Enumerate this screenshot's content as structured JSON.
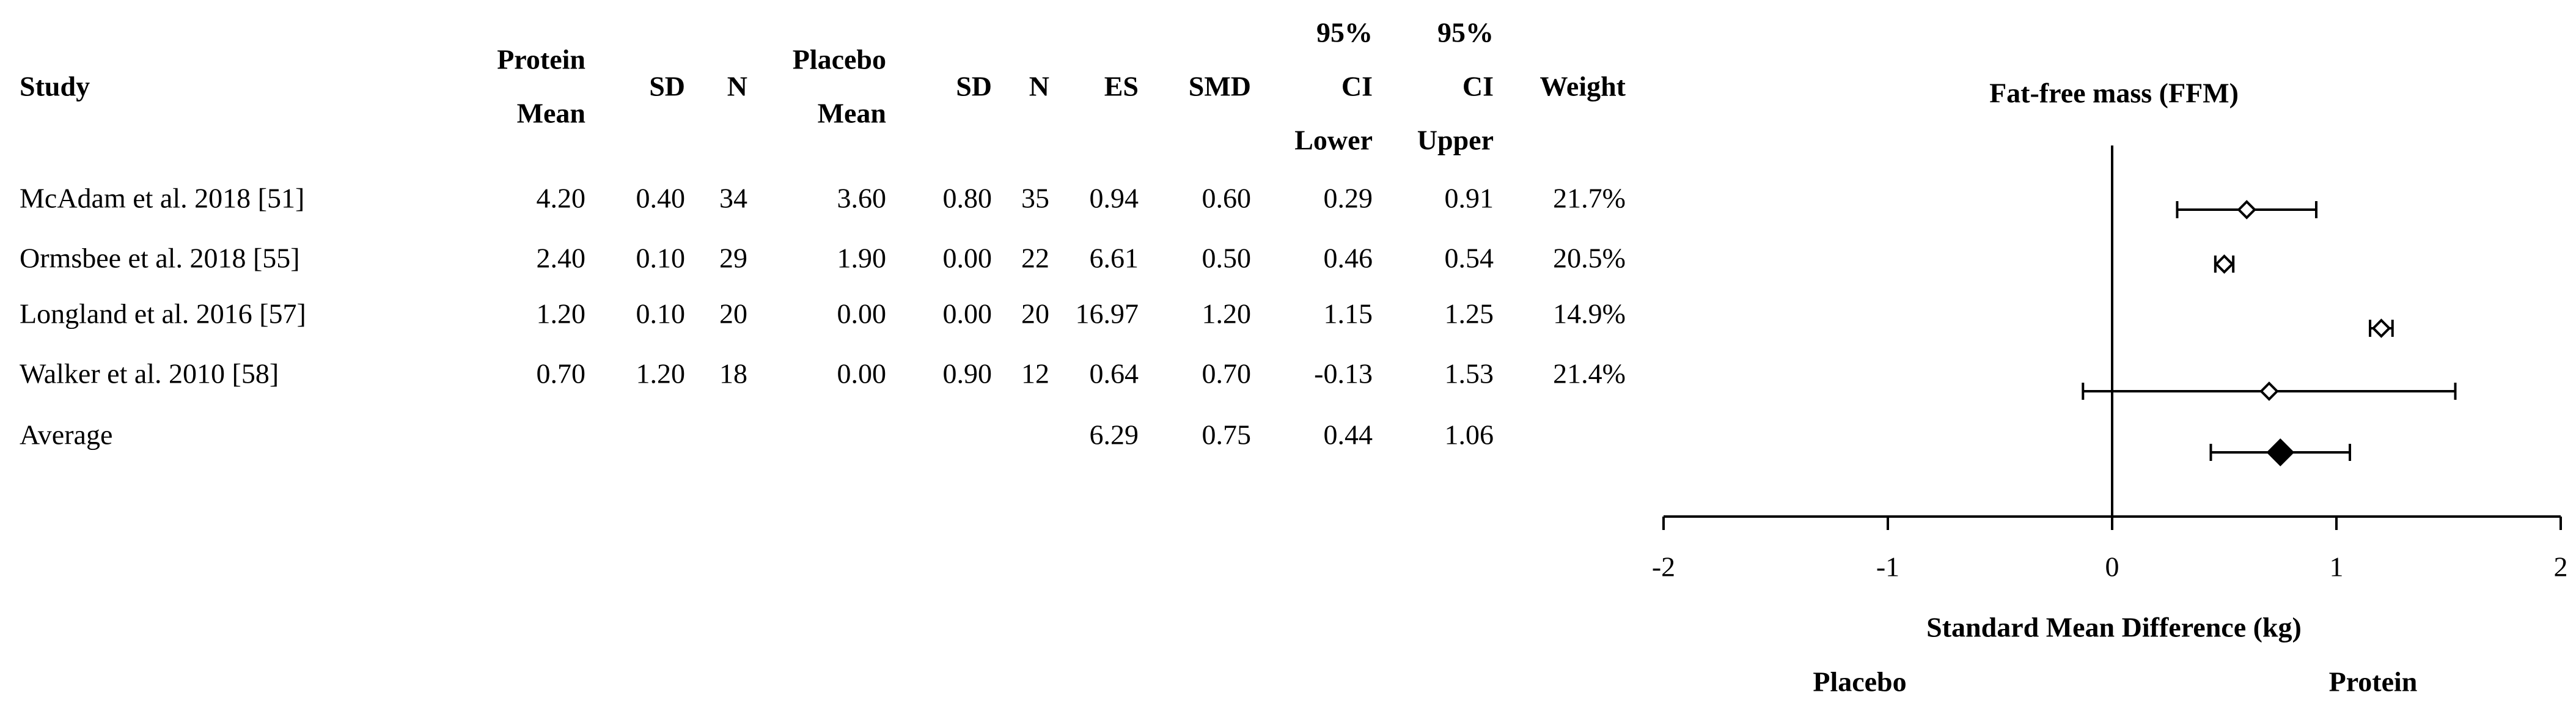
{
  "table": {
    "headers": [
      [
        "Study"
      ],
      [
        "Protein",
        "Mean"
      ],
      [
        "SD"
      ],
      [
        "N"
      ],
      [
        "Placebo",
        "Mean"
      ],
      [
        "SD"
      ],
      [
        "N"
      ],
      [
        "ES"
      ],
      [
        "SMD"
      ],
      [
        "95%",
        "CI",
        "Lower"
      ],
      [
        "95%",
        "CI",
        "Upper"
      ],
      [
        "Weight"
      ]
    ],
    "rows": [
      [
        "McAdam et al. 2018 [51]",
        "4.20",
        "0.40",
        "34",
        "3.60",
        "0.80",
        "35",
        "0.94",
        "0.60",
        "0.29",
        "0.91",
        "21.7%"
      ],
      [
        "Ormsbee et al. 2018 [55]",
        "2.40",
        "0.10",
        "29",
        "1.90",
        "0.00",
        "22",
        "6.61",
        "0.50",
        "0.46",
        "0.54",
        "20.5%"
      ],
      [
        "Longland et al. 2016 [57]",
        "1.20",
        "0.10",
        "20",
        "0.00",
        "0.00",
        "20",
        "16.97",
        "1.20",
        "1.15",
        "1.25",
        "14.9%"
      ],
      [
        "Walker et al. 2010 [58]",
        "0.70",
        "1.20",
        "18",
        "0.00",
        "0.90",
        "12",
        "0.64",
        "0.70",
        "-0.13",
        "1.53",
        "21.4%"
      ],
      [
        "Average",
        null,
        null,
        null,
        null,
        null,
        null,
        "6.29",
        "0.75",
        "0.44",
        "1.06",
        null
      ]
    ]
  },
  "chart_data": {
    "type": "forest",
    "title": "Fat-free mass (FFM)",
    "x_label": "Standard Mean Difference (kg)",
    "left_label": "Placebo",
    "right_label": "Protein",
    "xlim": [
      -2,
      2
    ],
    "xticks": [
      -2,
      -1,
      0,
      1,
      2
    ],
    "color": "#000000",
    "values": [
      0.6,
      0.5,
      1.2,
      0.7
    ],
    "lower": [
      0.29,
      0.46,
      1.15,
      -0.13
    ],
    "upper": [
      0.91,
      0.54,
      1.25,
      1.53
    ],
    "summary": {
      "value": 0.75,
      "lower": 0.44,
      "upper": 1.06
    }
  }
}
